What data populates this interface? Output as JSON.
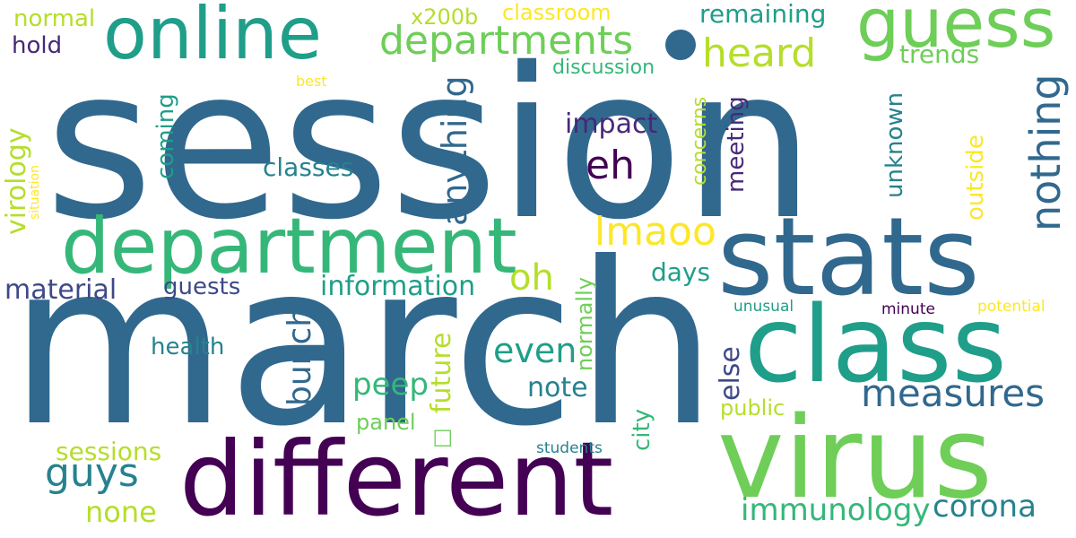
{
  "colors": {
    "background": "#ffffff",
    "dark_purple": "#440154",
    "purple": "#482878",
    "indigo": "#3e4989",
    "blue": "#31688e",
    "teal_blue": "#26828e",
    "teal": "#1f9e89",
    "green_teal": "#35b779",
    "green": "#6ece58",
    "lime": "#b5de2b",
    "yellow": "#fde725"
  },
  "words": {
    "session": "session",
    "march": "march",
    "stats": "stats",
    "class": "class",
    "virus": "virus",
    "different": "different",
    "department": "department",
    "online": "online",
    "guess": "guess",
    "departments": "departments",
    "heard": "heard",
    "nothing": "nothing",
    "measures": "measures",
    "anything": "anything",
    "eh": "eh",
    "lmaoo": "lmaoo",
    "bunch": "bunch",
    "oh": "oh",
    "even": "even",
    "guys": "guys",
    "corona": "corona",
    "immunology": "immunology",
    "peep": "peep",
    "future": "future",
    "note": "note",
    "information": "information",
    "material": "material",
    "virology": "virology",
    "impact": "impact",
    "classes": "classes",
    "else": "else",
    "unknown": "unknown",
    "meeting": "meeting",
    "outside": "outside",
    "coming": "coming",
    "city": "city",
    "none": "none",
    "sessions": "sessions",
    "days": "days",
    "guests": "guests",
    "remaining": "remaining",
    "trends": "trends",
    "normally": "normally",
    "concerns": "concerns",
    "health": "health",
    "panel": "panel",
    "public": "public",
    "normal": "normal",
    "hold": "hold",
    "x200b": "x200b",
    "classroom": "classroom",
    "discussion": "discussion",
    "unusual": "unusual",
    "minute": "minute",
    "potential": "potential",
    "students": "students",
    "best": "best",
    "situation": "situation",
    "symbol": "□"
  }
}
